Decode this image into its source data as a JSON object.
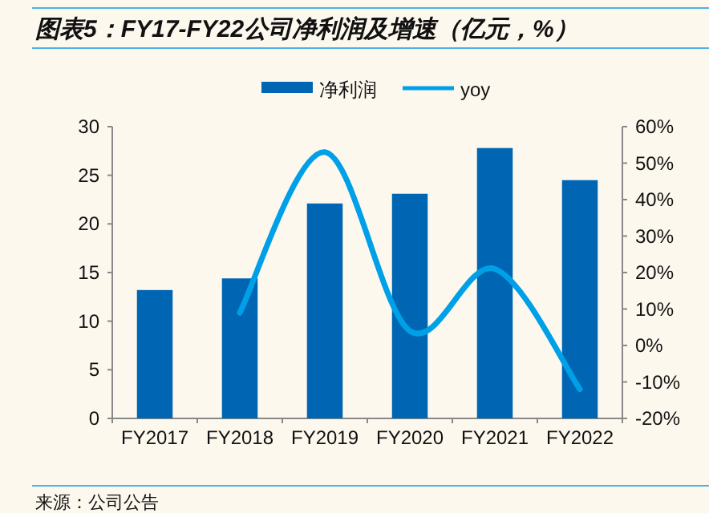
{
  "chart_data": {
    "type": "bar",
    "title": "图表5：FY17-FY22公司净利润及增速（亿元，%）",
    "categories": [
      "FY2017",
      "FY2018",
      "FY2019",
      "FY2020",
      "FY2021",
      "FY2022"
    ],
    "series": [
      {
        "name": "净利润",
        "color": "#0066b3",
        "values": [
          13.2,
          14.4,
          22.1,
          23.1,
          27.8,
          24.5
        ]
      },
      {
        "name": "yoy",
        "type": "line",
        "axis": "y2",
        "color": "#00a0e9",
        "values": [
          null,
          9,
          53,
          4,
          21,
          -12
        ]
      }
    ],
    "ylim": [
      0,
      30
    ],
    "yticks": [
      0,
      5,
      10,
      15,
      20,
      25,
      30
    ],
    "y2lim": [
      -20,
      60
    ],
    "y2ticks": [
      {
        "value": -20,
        "label": "-20%"
      },
      {
        "value": -10,
        "label": "-10%"
      },
      {
        "value": 0,
        "label": "0%"
      },
      {
        "value": 10,
        "label": "10%"
      },
      {
        "value": 20,
        "label": "20%"
      },
      {
        "value": 30,
        "label": "30%"
      },
      {
        "value": 40,
        "label": "40%"
      },
      {
        "value": 50,
        "label": "50%"
      },
      {
        "value": 60,
        "label": "60%"
      }
    ],
    "grid": false,
    "legend": "top",
    "marker": "none",
    "line_style": "solid",
    "annotations": [
      "来源：公司公告"
    ]
  }
}
